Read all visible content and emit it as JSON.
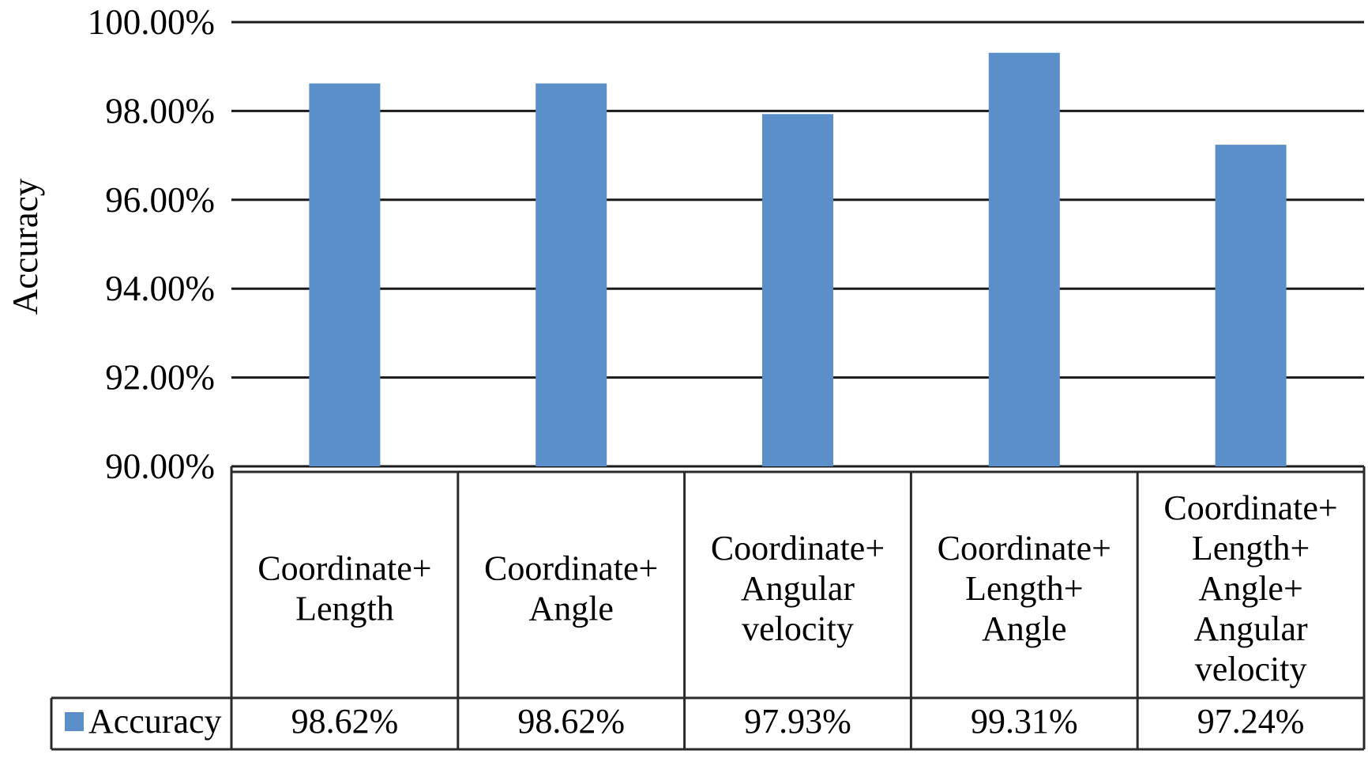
{
  "chart_data": {
    "type": "bar",
    "ylabel": "Accuracy",
    "ylim": [
      90,
      100
    ],
    "yticks": [
      "90.00%",
      "92.00%",
      "94.00%",
      "96.00%",
      "98.00%",
      "100.00%"
    ],
    "ytick_values": [
      90,
      92,
      94,
      96,
      98,
      100
    ],
    "categories": [
      [
        "Coordinate+",
        "Length"
      ],
      [
        "Coordinate+",
        "Angle"
      ],
      [
        "Coordinate+",
        "Angular",
        "velocity"
      ],
      [
        "Coordinate+",
        "Length+",
        "Angle"
      ],
      [
        "Coordinate+",
        "Length+",
        "Angle+",
        "Angular",
        "velocity"
      ]
    ],
    "series": [
      {
        "name": "Accuracy",
        "values": [
          98.62,
          98.62,
          97.93,
          99.31,
          97.24
        ],
        "labels": [
          "98.62%",
          "98.62%",
          "97.93%",
          "99.31%",
          "97.24%"
        ],
        "color": "#5b8fc9"
      }
    ],
    "grid": true,
    "legend": "data-table",
    "colors": {
      "gridline": "#1a1a1a",
      "table_border": "#2a2a2a"
    }
  }
}
